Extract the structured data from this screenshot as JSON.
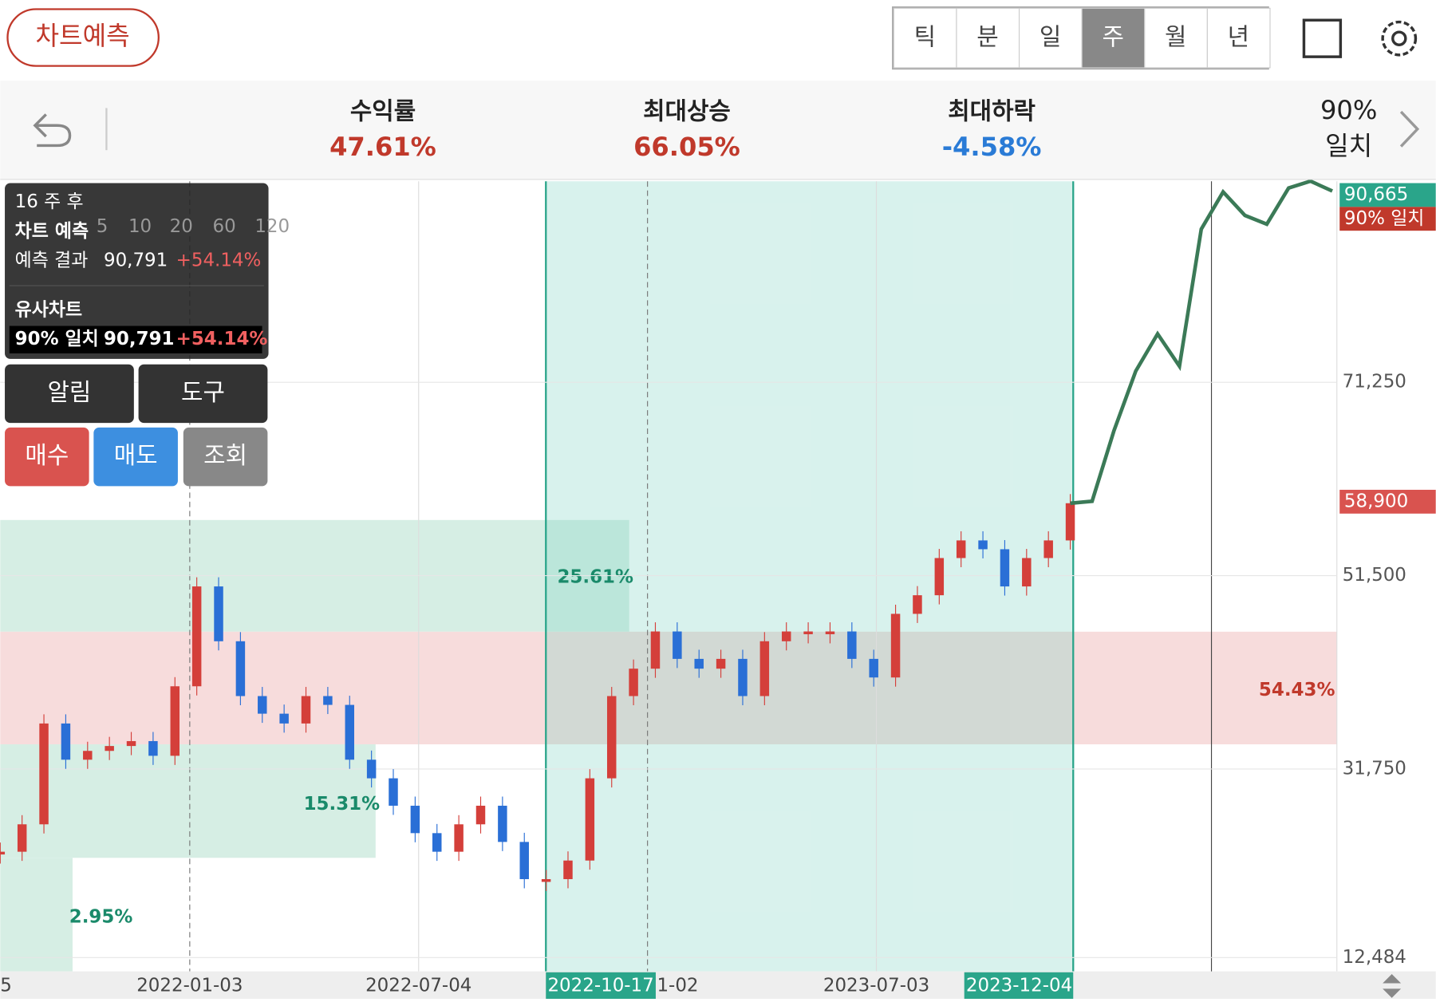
{
  "header": {
    "predict_button": "차트예측",
    "tabs": [
      "틱",
      "분",
      "일",
      "주",
      "월",
      "년"
    ],
    "selected_tab": 3
  },
  "summary": {
    "items": [
      {
        "label": "수익률",
        "value": "47.61%"
      },
      {
        "label": "최대상승",
        "value": "66.05%"
      },
      {
        "label": "최대하락",
        "value": "-4.58%"
      }
    ],
    "match": [
      "90%",
      "일치"
    ]
  },
  "info_panel": {
    "weeks": "16 주 후",
    "title": "차트 예측",
    "result_label": "예측 결과",
    "result_price": "90,791",
    "result_change": "+54.14%",
    "similar_title": "유사차트",
    "similar_label": "90% 일치",
    "similar_price": "90,791",
    "similar_change": "+54.14%",
    "legend": [
      "5",
      "10",
      "20",
      "60",
      "120"
    ]
  },
  "buttons": [
    "알림",
    "도구",
    "매수",
    "매도",
    "조회"
  ],
  "zones": [
    "25.61%",
    "15.31%",
    "2.95%",
    "54.43%"
  ],
  "badges": [
    "90,665",
    "90% 일치",
    "58,900"
  ],
  "chart_data": {
    "type": "line",
    "x_labels": [
      "5",
      "2022-01-03",
      "2022-07-04",
      "2022-10-17",
      "1-02",
      "2023-07-03",
      "2023-12-04"
    ],
    "ylim": [
      12484,
      90665
    ],
    "yticks": [
      {
        "value": 12484,
        "label": "12,484"
      },
      {
        "value": 31750,
        "label": "31,750"
      },
      {
        "value": 51500,
        "label": "51,500"
      },
      {
        "value": 71250,
        "label": "71,250"
      }
    ],
    "series": [
      {
        "color": "#d43f3a",
        "values": [
          23300,
          26100,
          36400,
          32700,
          33600,
          34100,
          34600,
          33100,
          40200,
          50400,
          44800,
          39200,
          37400,
          36400,
          39200,
          38300,
          32700,
          30800,
          28000,
          25200,
          23300,
          26100,
          28000,
          24300,
          20500,
          20500,
          22400,
          30800,
          39200,
          42000,
          45800,
          43000,
          42000,
          43000,
          39200,
          44800,
          45800,
          45800,
          45800,
          43000,
          41100,
          47600,
          49500,
          53300,
          55100,
          54200,
          50400,
          53300,
          55100,
          58900,
          null,
          null,
          null,
          null,
          null,
          null,
          null,
          null,
          null,
          null,
          null,
          null
        ]
      },
      {
        "color": "#3b7a57",
        "values": [
          null,
          null,
          null,
          null,
          null,
          null,
          null,
          null,
          null,
          null,
          null,
          null,
          null,
          null,
          null,
          null,
          null,
          null,
          null,
          null,
          null,
          null,
          null,
          null,
          null,
          null,
          null,
          null,
          null,
          null,
          null,
          null,
          null,
          null,
          null,
          null,
          null,
          null,
          null,
          null,
          null,
          null,
          null,
          null,
          null,
          null,
          null,
          null,
          null,
          58900,
          59100,
          66300,
          72400,
          76200,
          72900,
          86900,
          90700,
          88300,
          87400,
          91100,
          91800,
          90791
        ]
      }
    ]
  }
}
